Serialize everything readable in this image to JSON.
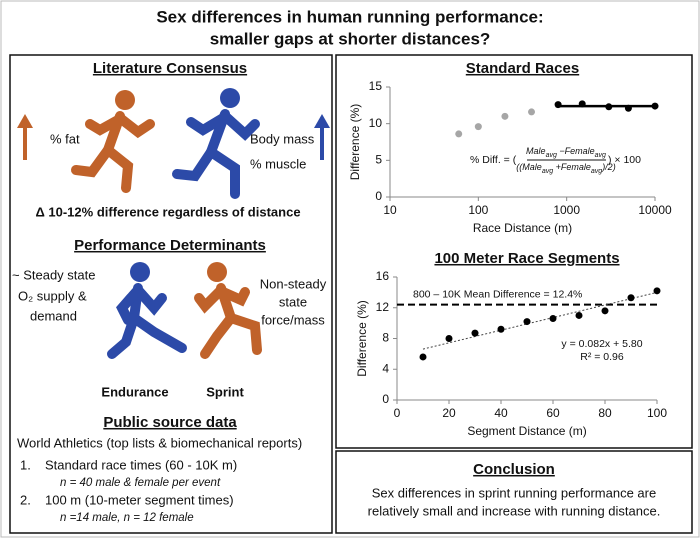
{
  "header": {
    "title_lines": [
      "Sex differences in human running performance:",
      "smaller gaps at shorter distances?"
    ]
  },
  "literature_consensus": {
    "title": "Literature Consensus",
    "fat_label": "% fat",
    "body_mass_label": "Body mass",
    "muscle_label": "% muscle",
    "summary": "Δ 10-12% difference regardless of distance"
  },
  "performance_determinants": {
    "title": "Performance Determinants",
    "steady_lines": [
      "~ Steady state",
      "O₂ supply &",
      "demand"
    ],
    "nonsteady_lines": [
      "Non-steady",
      "state",
      "force/mass"
    ],
    "endurance_label": "Endurance",
    "sprint_label": "Sprint"
  },
  "public_source_data": {
    "title": "Public source data",
    "intro": "World Athletics (top lists & biomechanical reports)",
    "items": [
      {
        "number": "1.",
        "text": "Standard race times (60 - 10K m)",
        "note": "n = 40 male & female per event"
      },
      {
        "number": "2.",
        "text": "100 m (10-meter segment times)",
        "note": "n =14 male, n = 12 female"
      }
    ]
  },
  "conclusion": {
    "title": "Conclusion",
    "lines": [
      "Sex differences in sprint running performance are",
      "relatively small and increase with running distance."
    ]
  },
  "chart_data": [
    {
      "type": "scatter",
      "title": "Standard Races",
      "x_label": "Race Distance (m)",
      "y_label": "Difference (%)",
      "xscale": "log",
      "xlim": [
        10,
        10000
      ],
      "xticks": [
        10,
        100,
        1000,
        10000
      ],
      "ylim": [
        0,
        15
      ],
      "yticks": [
        0,
        5,
        10,
        15
      ],
      "series": [
        {
          "color": "#a6a6a6",
          "x": [
            60,
            100,
            200,
            400
          ],
          "values": [
            8.6,
            9.6,
            11.0,
            11.6
          ]
        },
        {
          "color": "#000000",
          "x": [
            800,
            1500,
            3000,
            5000,
            10000
          ],
          "values": [
            12.6,
            12.7,
            12.3,
            12.1,
            12.4
          ]
        }
      ],
      "mean_line": {
        "value": 12.4,
        "x": [
          800,
          10000
        ],
        "color": "#000000"
      },
      "formula": {
        "lead": "% Diff.  =  (",
        "num": [
          "Male",
          "avg",
          " −Female",
          "avg"
        ],
        "den": [
          "((Male",
          "avg",
          " +Female",
          "avg",
          ")/2)"
        ],
        "tail": ")  × 100"
      }
    },
    {
      "type": "scatter",
      "title": "100 Meter Race Segments",
      "x_label": "Segment Distance (m)",
      "y_label": "Difference (%)",
      "xlim": [
        0,
        100
      ],
      "xticks": [
        0,
        20,
        40,
        60,
        80,
        100
      ],
      "ylim": [
        0,
        16
      ],
      "yticks": [
        0,
        4,
        8,
        12,
        16
      ],
      "series": [
        {
          "color": "#000000",
          "x": [
            10,
            20,
            30,
            40,
            50,
            60,
            70,
            80,
            90,
            100
          ],
          "values": [
            5.6,
            8.0,
            8.7,
            9.2,
            10.2,
            10.6,
            11.0,
            11.6,
            13.3,
            14.2
          ]
        }
      ],
      "reference_line": {
        "value": 12.4,
        "label": "800 – 10K Mean Difference = 12.4%"
      },
      "trendline": {
        "label": "y = 0.082x + 5.80",
        "slope": 0.082,
        "intercept": 5.8,
        "r2_label": "R² = 0.96"
      }
    }
  ]
}
